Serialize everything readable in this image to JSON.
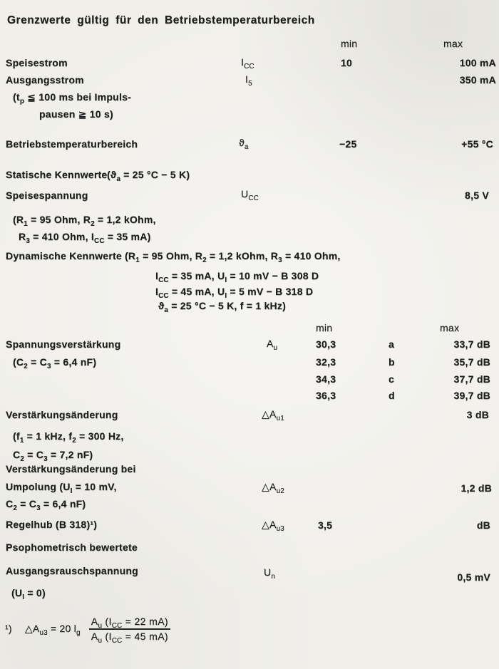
{
  "title": "Grenzwerte gültig für den Betriebstemperaturbereich",
  "columns": {
    "min": "min",
    "max": "max"
  },
  "grenzwerte": {
    "speisestrom": {
      "label": "Speisestrom",
      "symbol": "I~CC~",
      "min": "10",
      "max": "100 mA"
    },
    "ausgangsstrom": {
      "label": "Ausgangsstrom",
      "symbol": "I~5~",
      "max": "350 mA",
      "cond1": "(t~p~ ≦ 100 ms bei Impuls-",
      "cond2": "pausen ≧ 10 s)"
    },
    "betriebstemperatur": {
      "label": "Betriebstemperaturbereich",
      "symbol": "ϑ~a~",
      "min": "−25",
      "max": "+55 °C"
    }
  },
  "statisch": {
    "heading": "Statische Kennwerte",
    "heading_cond": "(ϑ~a~ = 25 °C − 5 K)",
    "speisespannung": {
      "label": "Speisespannung",
      "symbol": "U~CC~",
      "max": "8,5 V",
      "cond1": "(R~1~ = 95 Ohm, R~2~ = 1,2 kOhm,",
      "cond2": "R~3~ = 410 Ohm, I~CC~ = 35 mA)"
    }
  },
  "dynamisch": {
    "heading": "Dynamische Kennwerte",
    "cond1": "(R~1~ = 95 Ohm, R~2~ = 1,2 kOhm, R~3~ = 410 Ohm,",
    "cond2": "I~CC~ = 35 mA, U~I~ = 10 mV − B 308 D",
    "cond3": "I~CC~ = 45 mA, U~I~ =  5 mV − B 318 D",
    "cond4": "ϑ~a~ = 25 °C − 5 K, f = 1 kHz)",
    "spannungsverstaerkung": {
      "label": "Spannungsverstärkung",
      "cond": "(C~2~ = C~3~ = 6,4 nF)",
      "symbol": "A~u~",
      "variants": [
        {
          "min": "30,3",
          "group": "a",
          "max": "33,7 dB"
        },
        {
          "min": "32,3",
          "group": "b",
          "max": "35,7 dB"
        },
        {
          "min": "34,3",
          "group": "c",
          "max": "37,7 dB"
        },
        {
          "min": "36,3",
          "group": "d",
          "max": "39,7 dB"
        }
      ]
    },
    "aenderung1": {
      "label": "Verstärkungsänderung",
      "symbol": "△A~u1~",
      "max": "3 dB",
      "cond1": "(f~1~ = 1 kHz, f~2~ = 300 Hz,",
      "cond2": "C~2~ = C~3~ = 7,2 nF)"
    },
    "aenderung2": {
      "label1": "Verstärkungsänderung bei",
      "label2": "Umpolung (U~I~ = 10 mV,",
      "label3": "C~2~ = C~3~ = 6,4 nF)",
      "symbol": "△A~u2~",
      "max": "1,2 dB"
    },
    "regelhub": {
      "label": "Regelhub (B 318)¹)",
      "symbol": "△A~u3~",
      "min": "3,5",
      "max": "dB"
    },
    "rauschspannung": {
      "label1": "Psophometrisch bewertete",
      "label2": "Ausgangsrauschspannung",
      "label3": "(U~I~ = 0)",
      "symbol": "U~n~",
      "max": "0,5 mV"
    }
  },
  "footnote": {
    "marker": "¹)",
    "formula": "△A~u3~ = 20 l~g~",
    "numerator": "A~u~ (I~CC~ = 22 mA)",
    "denominator": "A~u~ (I~CC~ = 45 mA)"
  }
}
